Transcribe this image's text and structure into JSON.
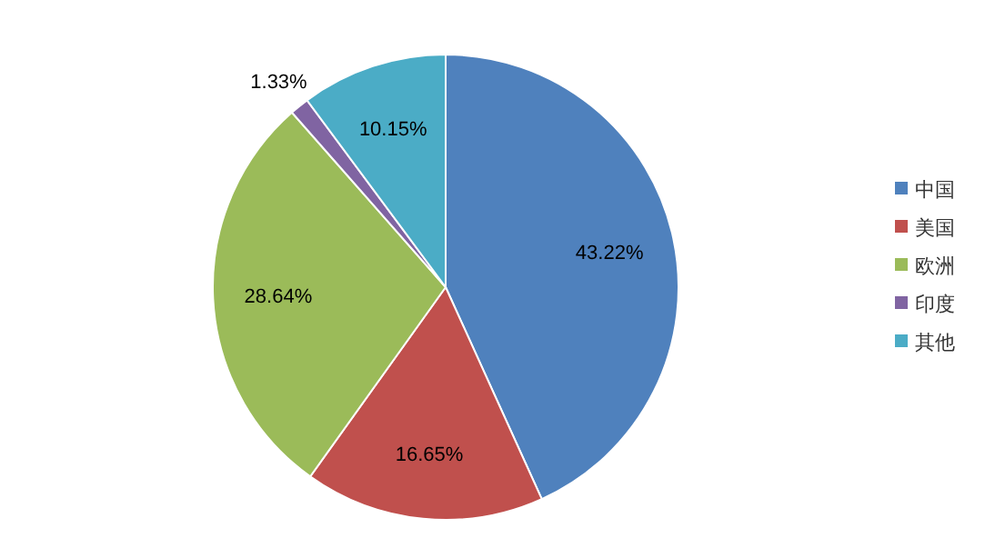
{
  "chart_data": {
    "type": "pie",
    "categories": [
      "中国",
      "美国",
      "欧洲",
      "印度",
      "其他"
    ],
    "values": [
      43.22,
      16.65,
      28.64,
      1.33,
      10.15
    ],
    "colors": [
      "#4f81bd",
      "#c0504d",
      "#9bbb59",
      "#8064a2",
      "#4bacc6"
    ],
    "value_labels": [
      "43.22%",
      "16.65%",
      "28.64%",
      "1.33%",
      "10.15%"
    ],
    "legend": "right"
  }
}
